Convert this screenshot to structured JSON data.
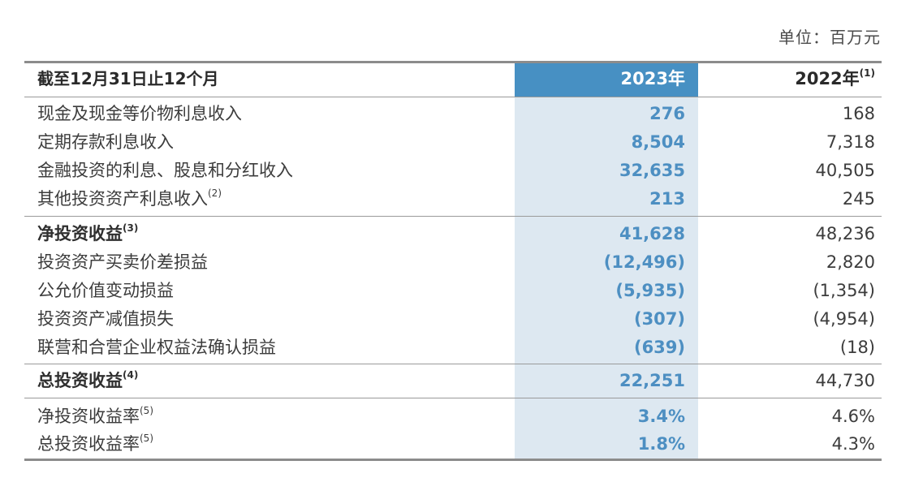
{
  "unit_label": "单位：百万元",
  "header": {
    "period": "截至12月31日止12个月",
    "col_2023": "2023年",
    "col_2022": "2022年",
    "col_2022_note": "(1)"
  },
  "rows": [
    {
      "label": "现金及现金等价物利息收入",
      "note": "",
      "v2023": "276",
      "v2022": "168",
      "bold": false
    },
    {
      "label": "定期存款利息收入",
      "note": "",
      "v2023": "8,504",
      "v2022": "7,318",
      "bold": false
    },
    {
      "label": "金融投资的利息、股息和分红收入",
      "note": "",
      "v2023": "32,635",
      "v2022": "40,505",
      "bold": false
    },
    {
      "label": "其他投资资产利息收入",
      "note": "(2)",
      "v2023": "213",
      "v2022": "245",
      "bold": false
    },
    {
      "label": "净投资收益",
      "note": "(3)",
      "v2023": "41,628",
      "v2022": "48,236",
      "bold": true
    },
    {
      "label": "投资资产买卖价差损益",
      "note": "",
      "v2023": "(12,496)",
      "v2022": "2,820",
      "bold": false
    },
    {
      "label": "公允价值变动损益",
      "note": "",
      "v2023": "(5,935)",
      "v2022": "(1,354)",
      "bold": false
    },
    {
      "label": "投资资产减值损失",
      "note": "",
      "v2023": "(307)",
      "v2022": "(4,954)",
      "bold": false
    },
    {
      "label": "联营和合营企业权益法确认损益",
      "note": "",
      "v2023": "(639)",
      "v2022": "(18)",
      "bold": false
    },
    {
      "label": "总投资收益",
      "note": "(4)",
      "v2023": "22,251",
      "v2022": "44,730",
      "bold": true
    },
    {
      "label": "净投资收益率",
      "note": "(5)",
      "v2023": "3.4%",
      "v2022": "4.6%",
      "bold": false
    },
    {
      "label": "总投资收益率",
      "note": "(5)",
      "v2023": "1.8%",
      "v2022": "4.3%",
      "bold": false
    }
  ],
  "colors": {
    "header_accent": "#4790c3",
    "column_highlight": "#dde8f1",
    "value_2023": "#4d8fc2"
  }
}
